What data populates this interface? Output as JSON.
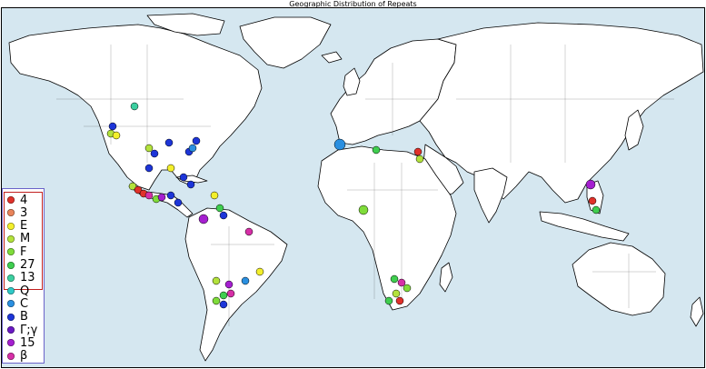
{
  "title": "Geographic Distribution of Repeats",
  "map": {
    "ocean_color": "#d5e7f0",
    "land_color": "#ffffff",
    "border_color": "#000000"
  },
  "legend": {
    "outer_border_color": "#6a63c9",
    "inner_border_color": "#c21f1f",
    "items": [
      {
        "label": "4",
        "color": "#e0312a"
      },
      {
        "label": "3",
        "color": "#e8845a"
      },
      {
        "label": "E",
        "color": "#f3ef2b"
      },
      {
        "label": "M",
        "color": "#b3e23c"
      },
      {
        "label": "F",
        "color": "#7fdc3a"
      },
      {
        "label": "27",
        "color": "#3fce4f"
      },
      {
        "label": "13",
        "color": "#3ccfa0"
      },
      {
        "label": "Q",
        "color": "#2fc9c7"
      },
      {
        "label": "C",
        "color": "#2a8fe0"
      },
      {
        "label": "B",
        "color": "#1d35d8"
      },
      {
        "label": "Γ;γ",
        "color": "#6a19c4"
      },
      {
        "label": "15",
        "color": "#a51fd0"
      },
      {
        "label": "β",
        "color": "#d62fa7"
      }
    ]
  }
}
